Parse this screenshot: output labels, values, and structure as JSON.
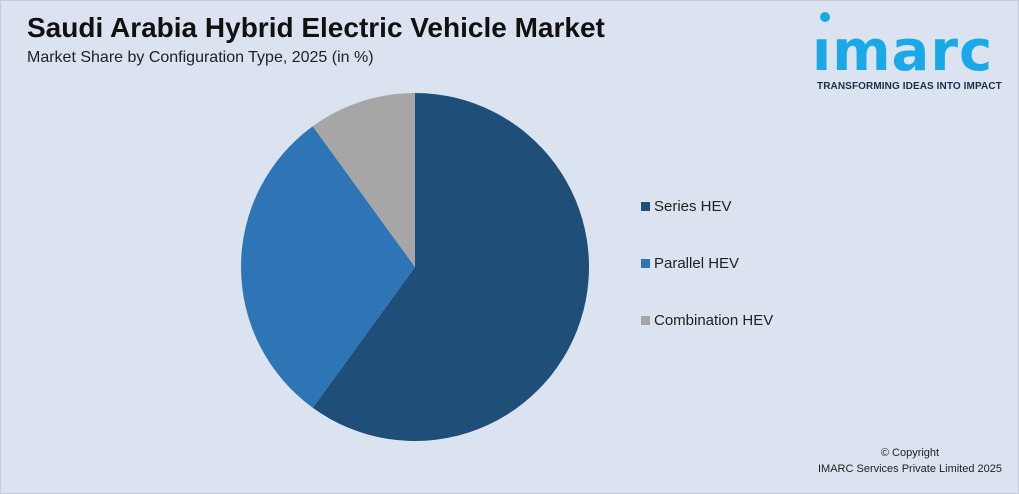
{
  "title": "Saudi Arabia Hybrid Electric Vehicle Market",
  "subtitle": "Market Share by Configuration Type, 2025 (in %)",
  "logo": {
    "word": "ımarc",
    "tagline": "TRANSFORMING IDEAS INTO IMPACT",
    "color": "#1aa9e8"
  },
  "chart_data": {
    "type": "pie",
    "categories": [
      "Series HEV",
      "Parallel HEV",
      "Combination HEV"
    ],
    "values": [
      60,
      30,
      10
    ],
    "colors": [
      "#1f4e79",
      "#2e75b6",
      "#a6a6a6"
    ],
    "legend_position": "right"
  },
  "copyright": {
    "line1": "© Copyright",
    "line2": "IMARC Services Private Limited 2025"
  }
}
